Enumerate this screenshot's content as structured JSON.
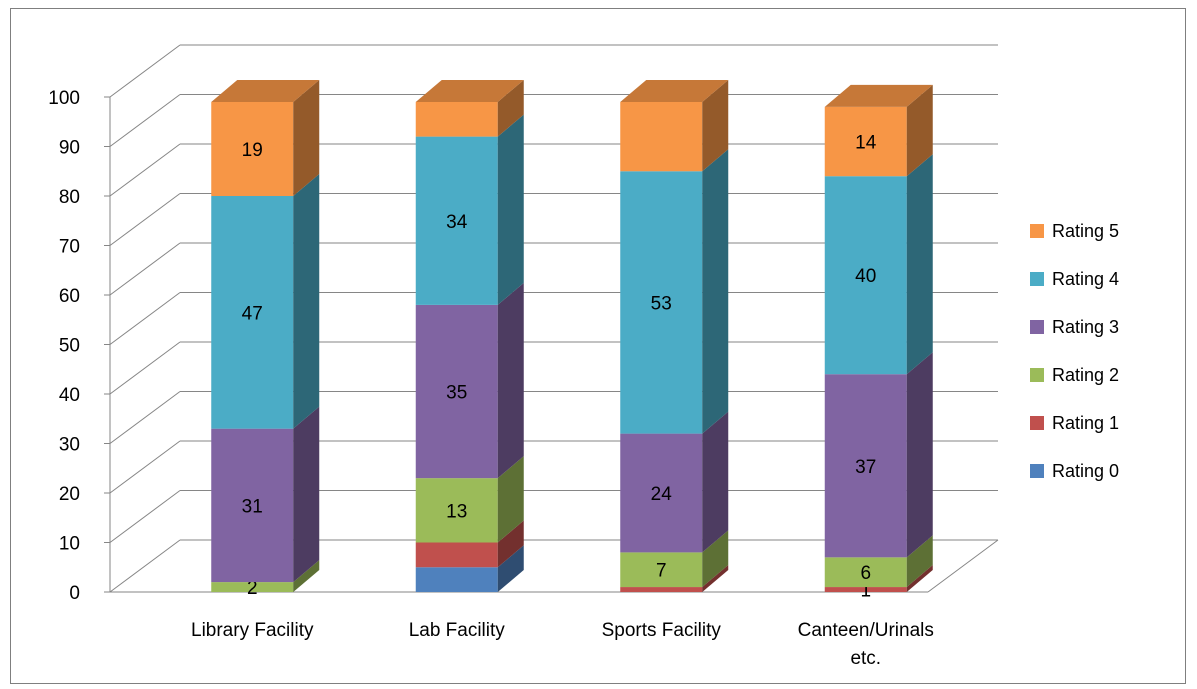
{
  "chart_data": {
    "type": "bar",
    "stacked": true,
    "three_d": true,
    "categories": [
      "Library Facility",
      "Lab Facility",
      "Sports Facility",
      "Canteen/Urinals etc."
    ],
    "category_label_lines": [
      [
        "Library Facility"
      ],
      [
        "Lab Facility"
      ],
      [
        "Sports Facility"
      ],
      [
        "Canteen/Urinals",
        "etc."
      ]
    ],
    "series": [
      {
        "name": "Rating 0",
        "color": "#4f81bd",
        "values": [
          0,
          5,
          0,
          0
        ],
        "labels": [
          "",
          "",
          "",
          ""
        ]
      },
      {
        "name": "Rating 1",
        "color": "#c0504d",
        "values": [
          0,
          5,
          1,
          1
        ],
        "labels": [
          "",
          "",
          "",
          "1"
        ]
      },
      {
        "name": "Rating 2",
        "color": "#9bbb59",
        "values": [
          2,
          13,
          7,
          6
        ],
        "labels": [
          "2",
          "13",
          "7",
          "6"
        ]
      },
      {
        "name": "Rating 3",
        "color": "#8064a2",
        "values": [
          31,
          35,
          24,
          37
        ],
        "labels": [
          "31",
          "35",
          "24",
          "37"
        ]
      },
      {
        "name": "Rating 4",
        "color": "#4bacc6",
        "values": [
          47,
          34,
          53,
          40
        ],
        "labels": [
          "47",
          "34",
          "53",
          "40"
        ]
      },
      {
        "name": "Rating 5",
        "color": "#f79646",
        "values": [
          19,
          7,
          14,
          14
        ],
        "labels": [
          "19",
          "",
          "",
          "14"
        ]
      }
    ],
    "legend_order": [
      "Rating 5",
      "Rating 4",
      "Rating 3",
      "Rating 2",
      "Rating 1",
      "Rating 0"
    ],
    "y_ticks": [
      "0",
      "10",
      "20",
      "30",
      "40",
      "50",
      "60",
      "70",
      "80",
      "90",
      "100"
    ],
    "ylim": [
      0,
      100
    ],
    "grid": true,
    "legend_position": "right"
  }
}
